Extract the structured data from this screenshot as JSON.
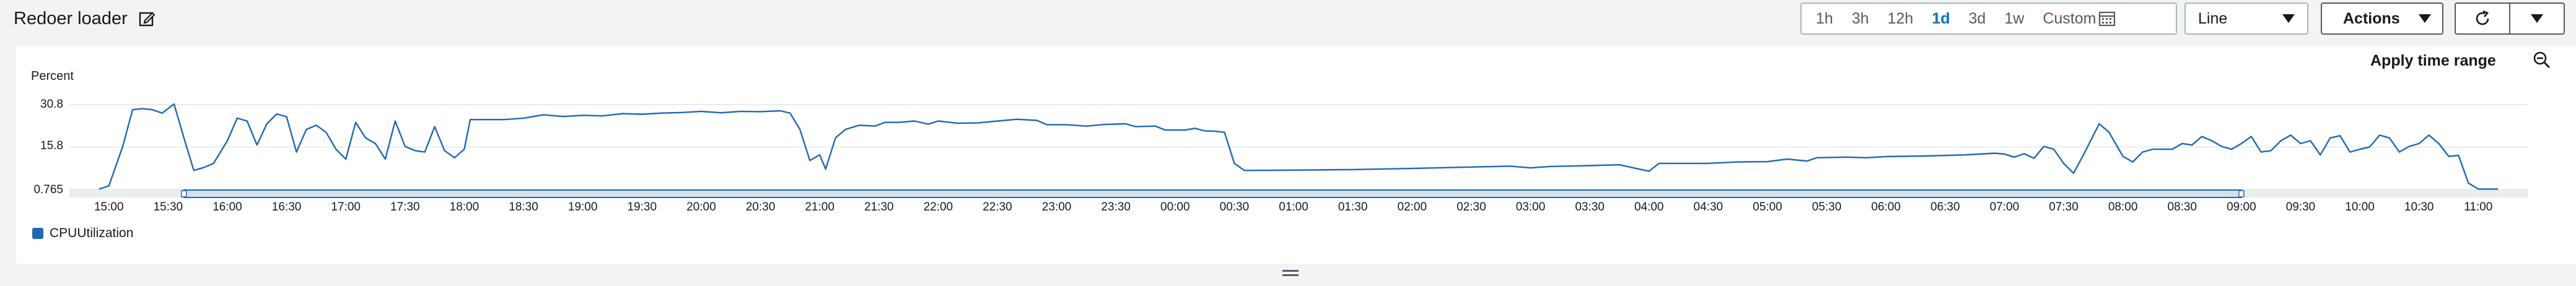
{
  "header": {
    "title": "Redoer loader"
  },
  "toolbar": {
    "ranges": [
      "1h",
      "3h",
      "12h",
      "1d",
      "3d",
      "1w",
      "Custom"
    ],
    "active_range": "1d",
    "chart_type": "Line",
    "actions_label": "Actions"
  },
  "panel": {
    "apply_time_range": "Apply time range"
  },
  "chart_data": {
    "type": "line",
    "ylabel": "Percent",
    "y_ticks": [
      "30.8",
      "15.8",
      "0.765"
    ],
    "ylim": [
      0.765,
      30.8
    ],
    "x_ticks": [
      "15:00",
      "15:30",
      "16:00",
      "16:30",
      "17:00",
      "17:30",
      "18:00",
      "18:30",
      "19:00",
      "19:30",
      "20:00",
      "20:30",
      "21:00",
      "21:30",
      "22:00",
      "22:30",
      "23:00",
      "23:30",
      "00:00",
      "00:30",
      "01:00",
      "01:30",
      "02:00",
      "02:30",
      "03:00",
      "03:30",
      "04:00",
      "04:30",
      "05:00",
      "05:30",
      "06:00",
      "06:30",
      "07:00",
      "07:30",
      "08:00",
      "08:30",
      "09:00",
      "09:30",
      "10:00",
      "10:30",
      "11:00"
    ],
    "series": [
      {
        "name": "CPUUtilization",
        "color": "#1f69b4",
        "points": [
          [
            "14:55",
            0.9
          ],
          [
            "15:00",
            2.0
          ],
          [
            "15:07",
            16.0
          ],
          [
            "15:12",
            29.0
          ],
          [
            "15:17",
            29.4
          ],
          [
            "15:22",
            29.0
          ],
          [
            "15:27",
            27.8
          ],
          [
            "15:33",
            31.0
          ],
          [
            "15:38",
            19.0
          ],
          [
            "15:43",
            7.5
          ],
          [
            "15:48",
            8.5
          ],
          [
            "15:53",
            10.0
          ],
          [
            "16:00",
            18.0
          ],
          [
            "16:05",
            26.0
          ],
          [
            "16:10",
            25.0
          ],
          [
            "16:15",
            16.5
          ],
          [
            "16:20",
            24.0
          ],
          [
            "16:25",
            27.5
          ],
          [
            "16:30",
            26.5
          ],
          [
            "16:35",
            14.0
          ],
          [
            "16:40",
            22.0
          ],
          [
            "16:45",
            23.5
          ],
          [
            "16:50",
            21.0
          ],
          [
            "16:55",
            15.0
          ],
          [
            "17:00",
            11.5
          ],
          [
            "17:05",
            24.5
          ],
          [
            "17:10",
            19.0
          ],
          [
            "17:15",
            17.0
          ],
          [
            "17:20",
            11.5
          ],
          [
            "17:25",
            25.0
          ],
          [
            "17:30",
            16.0
          ],
          [
            "17:35",
            14.5
          ],
          [
            "17:40",
            14.0
          ],
          [
            "17:45",
            23.0
          ],
          [
            "17:50",
            14.5
          ],
          [
            "17:55",
            12.0
          ],
          [
            "18:00",
            15.0
          ],
          [
            "18:03",
            25.5
          ],
          [
            "18:10",
            25.5
          ],
          [
            "18:20",
            25.5
          ],
          [
            "18:30",
            26.0
          ],
          [
            "18:40",
            27.2
          ],
          [
            "18:50",
            26.6
          ],
          [
            "19:00",
            27.0
          ],
          [
            "19:10",
            26.8
          ],
          [
            "19:20",
            27.6
          ],
          [
            "19:30",
            27.4
          ],
          [
            "19:40",
            27.8
          ],
          [
            "19:50",
            28.0
          ],
          [
            "20:00",
            28.4
          ],
          [
            "20:10",
            27.9
          ],
          [
            "20:20",
            28.4
          ],
          [
            "20:30",
            28.3
          ],
          [
            "20:40",
            28.6
          ],
          [
            "20:45",
            27.8
          ],
          [
            "20:50",
            22.0
          ],
          [
            "20:55",
            11.0
          ],
          [
            "21:00",
            13.0
          ],
          [
            "21:03",
            8.0
          ],
          [
            "21:08",
            19.0
          ],
          [
            "21:13",
            22.0
          ],
          [
            "21:20",
            23.5
          ],
          [
            "21:28",
            23.2
          ],
          [
            "21:33",
            24.5
          ],
          [
            "21:40",
            24.5
          ],
          [
            "21:48",
            25.0
          ],
          [
            "21:55",
            23.9
          ],
          [
            "22:00",
            25.0
          ],
          [
            "22:10",
            24.2
          ],
          [
            "22:20",
            24.3
          ],
          [
            "22:30",
            25.0
          ],
          [
            "22:40",
            25.6
          ],
          [
            "22:50",
            25.2
          ],
          [
            "22:55",
            23.7
          ],
          [
            "23:05",
            23.7
          ],
          [
            "23:15",
            23.2
          ],
          [
            "23:25",
            23.8
          ],
          [
            "23:35",
            24.0
          ],
          [
            "23:40",
            23.0
          ],
          [
            "23:50",
            23.2
          ],
          [
            "23:55",
            21.8
          ],
          [
            "00:05",
            21.8
          ],
          [
            "00:10",
            22.4
          ],
          [
            "00:15",
            21.5
          ],
          [
            "00:20",
            21.4
          ],
          [
            "00:25",
            21.0
          ],
          [
            "00:30",
            10.0
          ],
          [
            "00:35",
            7.5
          ],
          [
            "01:00",
            7.6
          ],
          [
            "01:30",
            7.8
          ],
          [
            "02:00",
            8.2
          ],
          [
            "02:30",
            8.7
          ],
          [
            "02:50",
            9.0
          ],
          [
            "03:00",
            8.4
          ],
          [
            "03:10",
            8.9
          ],
          [
            "03:30",
            9.2
          ],
          [
            "03:45",
            9.5
          ],
          [
            "04:00",
            7.2
          ],
          [
            "04:05",
            10.0
          ],
          [
            "04:30",
            10.0
          ],
          [
            "04:45",
            10.5
          ],
          [
            "05:00",
            10.6
          ],
          [
            "05:10",
            11.5
          ],
          [
            "05:20",
            10.8
          ],
          [
            "05:25",
            12.0
          ],
          [
            "05:40",
            12.2
          ],
          [
            "05:50",
            12.0
          ],
          [
            "06:00",
            12.4
          ],
          [
            "06:20",
            12.6
          ],
          [
            "06:40",
            13.0
          ],
          [
            "06:55",
            13.6
          ],
          [
            "07:00",
            13.3
          ],
          [
            "07:05",
            12.2
          ],
          [
            "07:10",
            13.4
          ],
          [
            "07:15",
            11.8
          ],
          [
            "07:20",
            16.0
          ],
          [
            "07:25",
            15.0
          ],
          [
            "07:30",
            10.0
          ],
          [
            "07:35",
            6.5
          ],
          [
            "07:40",
            13.0
          ],
          [
            "07:48",
            24.0
          ],
          [
            "07:53",
            21.0
          ],
          [
            "08:00",
            12.5
          ],
          [
            "08:05",
            10.5
          ],
          [
            "08:10",
            14.0
          ],
          [
            "08:15",
            15.0
          ],
          [
            "08:25",
            15.0
          ],
          [
            "08:30",
            17.0
          ],
          [
            "08:35",
            16.5
          ],
          [
            "08:40",
            19.5
          ],
          [
            "08:45",
            18.0
          ],
          [
            "08:50",
            16.0
          ],
          [
            "08:55",
            15.0
          ],
          [
            "09:00",
            17.0
          ],
          [
            "09:05",
            19.5
          ],
          [
            "09:10",
            14.0
          ],
          [
            "09:15",
            14.5
          ],
          [
            "09:20",
            18.0
          ],
          [
            "09:25",
            20.0
          ],
          [
            "09:30",
            17.0
          ],
          [
            "09:35",
            18.0
          ],
          [
            "09:40",
            13.0
          ],
          [
            "09:45",
            19.0
          ],
          [
            "09:50",
            19.8
          ],
          [
            "09:55",
            14.0
          ],
          [
            "10:00",
            15.0
          ],
          [
            "10:05",
            15.8
          ],
          [
            "10:10",
            20.0
          ],
          [
            "10:15",
            19.0
          ],
          [
            "10:20",
            14.0
          ],
          [
            "10:25",
            16.0
          ],
          [
            "10:30",
            17.0
          ],
          [
            "10:35",
            20.0
          ],
          [
            "10:40",
            17.0
          ],
          [
            "10:45",
            12.5
          ],
          [
            "10:50",
            12.8
          ],
          [
            "10:55",
            3.0
          ],
          [
            "11:00",
            0.9
          ],
          [
            "11:10",
            0.9
          ]
        ]
      }
    ],
    "selection_range": [
      "15:38",
      "09:00"
    ],
    "grid": true,
    "legend_position": "bottom-left"
  }
}
